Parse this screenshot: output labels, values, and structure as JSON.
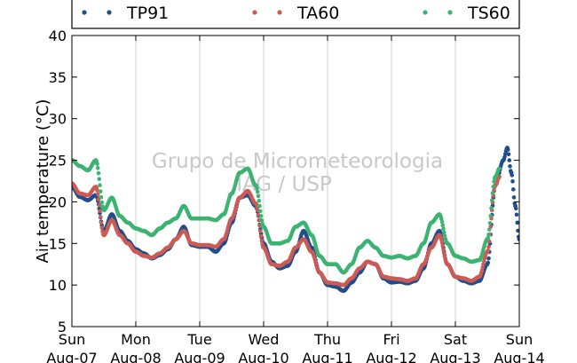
{
  "chart_data": {
    "type": "scatter",
    "ylabel": "Air temperature (°C)",
    "ylim": [
      5,
      40
    ],
    "yticks": [
      5,
      10,
      15,
      20,
      25,
      30,
      35,
      40
    ],
    "x_unit": "day",
    "xlim": [
      "2016-08-07",
      "2016-08-14"
    ],
    "xticks": [
      {
        "day": "Sun",
        "date": "Aug-07"
      },
      {
        "day": "Mon",
        "date": "Aug-08"
      },
      {
        "day": "Tue",
        "date": "Aug-09"
      },
      {
        "day": "Wed",
        "date": "Aug-10"
      },
      {
        "day": "Thu",
        "date": "Aug-11"
      },
      {
        "day": "Fri",
        "date": "Aug-12"
      },
      {
        "day": "Sat",
        "date": "Aug-13"
      },
      {
        "day": "Sun",
        "date": "Aug-14"
      }
    ],
    "grid": "vertical",
    "legend_position": "top",
    "watermark": [
      "Grupo de Micrometeorologia",
      "IAG / USP"
    ],
    "series": [
      {
        "name": "TP91",
        "color": "#1f4e8c",
        "points": [
          [
            "2016-08-07 00:00",
            21.8
          ],
          [
            "2016-08-07 03:00",
            20.6
          ],
          [
            "2016-08-07 06:00",
            20.2
          ],
          [
            "2016-08-07 09:00",
            20.8
          ],
          [
            "2016-08-07 12:00",
            16.5
          ],
          [
            "2016-08-07 15:00",
            18.5
          ],
          [
            "2016-08-07 18:00",
            16.5
          ],
          [
            "2016-08-07 21:00",
            15.3
          ],
          [
            "2016-08-08 00:00",
            14.3
          ],
          [
            "2016-08-08 03:00",
            13.8
          ],
          [
            "2016-08-08 06:00",
            13.2
          ],
          [
            "2016-08-08 09:00",
            13.6
          ],
          [
            "2016-08-08 12:00",
            14.3
          ],
          [
            "2016-08-08 15:00",
            15.5
          ],
          [
            "2016-08-08 18:00",
            17.0
          ],
          [
            "2016-08-08 21:00",
            14.8
          ],
          [
            "2016-08-09 00:00",
            14.6
          ],
          [
            "2016-08-09 03:00",
            14.6
          ],
          [
            "2016-08-09 06:00",
            14.0
          ],
          [
            "2016-08-09 09:00",
            15.0
          ],
          [
            "2016-08-09 12:00",
            17.5
          ],
          [
            "2016-08-09 15:00",
            20.5
          ],
          [
            "2016-08-09 18:00",
            20.8
          ],
          [
            "2016-08-09 21:00",
            19.5
          ],
          [
            "2016-08-10 00:00",
            15.0
          ],
          [
            "2016-08-10 03:00",
            12.8
          ],
          [
            "2016-08-10 06:00",
            12.0
          ],
          [
            "2016-08-10 09:00",
            12.3
          ],
          [
            "2016-08-10 12:00",
            14.0
          ],
          [
            "2016-08-10 15:00",
            16.5
          ],
          [
            "2016-08-10 18:00",
            14.5
          ],
          [
            "2016-08-10 21:00",
            11.5
          ],
          [
            "2016-08-11 00:00",
            10.0
          ],
          [
            "2016-08-11 03:00",
            9.8
          ],
          [
            "2016-08-11 06:00",
            9.3
          ],
          [
            "2016-08-11 09:00",
            10.3
          ],
          [
            "2016-08-11 12:00",
            11.5
          ],
          [
            "2016-08-11 15:00",
            12.8
          ],
          [
            "2016-08-11 18:00",
            12.5
          ],
          [
            "2016-08-11 21:00",
            10.8
          ],
          [
            "2016-08-12 00:00",
            10.3
          ],
          [
            "2016-08-12 03:00",
            10.4
          ],
          [
            "2016-08-12 06:00",
            10.2
          ],
          [
            "2016-08-12 09:00",
            10.5
          ],
          [
            "2016-08-12 12:00",
            12.0
          ],
          [
            "2016-08-12 15:00",
            15.0
          ],
          [
            "2016-08-12 18:00",
            16.5
          ],
          [
            "2016-08-12 21:00",
            12.5
          ],
          [
            "2016-08-13 00:00",
            11.0
          ],
          [
            "2016-08-13 03:00",
            10.5
          ],
          [
            "2016-08-13 06:00",
            10.2
          ],
          [
            "2016-08-13 09:00",
            10.5
          ],
          [
            "2016-08-13 12:00",
            12.5
          ],
          [
            "2016-08-13 15:00",
            22.0
          ],
          [
            "2016-08-13 18:00",
            25.0
          ],
          [
            "2016-08-13 19:30",
            26.5
          ],
          [
            "2016-08-13 21:00",
            23.5
          ],
          [
            "2016-08-13 22:30",
            19.5
          ],
          [
            "2016-08-14 00:00",
            15.5
          ]
        ]
      },
      {
        "name": "TA60",
        "color": "#cc5a55",
        "points": [
          [
            "2016-08-07 00:00",
            22.2
          ],
          [
            "2016-08-07 03:00",
            21.0
          ],
          [
            "2016-08-07 06:00",
            20.8
          ],
          [
            "2016-08-07 09:00",
            21.8
          ],
          [
            "2016-08-07 12:00",
            16.0
          ],
          [
            "2016-08-07 15:00",
            17.8
          ],
          [
            "2016-08-07 18:00",
            16.0
          ],
          [
            "2016-08-07 21:00",
            15.0
          ],
          [
            "2016-08-08 00:00",
            14.0
          ],
          [
            "2016-08-08 03:00",
            13.5
          ],
          [
            "2016-08-08 06:00",
            13.3
          ],
          [
            "2016-08-08 09:00",
            13.8
          ],
          [
            "2016-08-08 12:00",
            14.5
          ],
          [
            "2016-08-08 15:00",
            15.5
          ],
          [
            "2016-08-08 18:00",
            16.5
          ],
          [
            "2016-08-08 21:00",
            15.0
          ],
          [
            "2016-08-09 00:00",
            14.8
          ],
          [
            "2016-08-09 03:00",
            14.8
          ],
          [
            "2016-08-09 06:00",
            14.6
          ],
          [
            "2016-08-09 09:00",
            15.5
          ],
          [
            "2016-08-09 12:00",
            18.0
          ],
          [
            "2016-08-09 15:00",
            20.5
          ],
          [
            "2016-08-09 18:00",
            21.3
          ],
          [
            "2016-08-09 21:00",
            19.8
          ],
          [
            "2016-08-10 00:00",
            14.5
          ],
          [
            "2016-08-10 03:00",
            12.5
          ],
          [
            "2016-08-10 06:00",
            12.3
          ],
          [
            "2016-08-10 09:00",
            12.8
          ],
          [
            "2016-08-10 12:00",
            14.5
          ],
          [
            "2016-08-10 15:00",
            15.5
          ],
          [
            "2016-08-10 18:00",
            14.0
          ],
          [
            "2016-08-10 21:00",
            11.5
          ],
          [
            "2016-08-11 00:00",
            10.3
          ],
          [
            "2016-08-11 03:00",
            10.2
          ],
          [
            "2016-08-11 06:00",
            10.0
          ],
          [
            "2016-08-11 09:00",
            10.8
          ],
          [
            "2016-08-11 12:00",
            12.0
          ],
          [
            "2016-08-11 15:00",
            12.8
          ],
          [
            "2016-08-11 18:00",
            12.5
          ],
          [
            "2016-08-11 21:00",
            11.0
          ],
          [
            "2016-08-12 00:00",
            10.8
          ],
          [
            "2016-08-12 03:00",
            10.7
          ],
          [
            "2016-08-12 06:00",
            10.5
          ],
          [
            "2016-08-12 09:00",
            10.8
          ],
          [
            "2016-08-12 12:00",
            12.5
          ],
          [
            "2016-08-12 15:00",
            14.5
          ],
          [
            "2016-08-12 18:00",
            16.0
          ],
          [
            "2016-08-12 21:00",
            12.5
          ],
          [
            "2016-08-13 00:00",
            11.0
          ],
          [
            "2016-08-13 03:00",
            10.8
          ],
          [
            "2016-08-13 06:00",
            10.5
          ],
          [
            "2016-08-13 09:00",
            11.0
          ],
          [
            "2016-08-13 12:00",
            14.0
          ],
          [
            "2016-08-13 15:00",
            22.0
          ],
          [
            "2016-08-13 16:30",
            23.0
          ]
        ]
      },
      {
        "name": "TS60",
        "color": "#3cb371",
        "points": [
          [
            "2016-08-07 00:00",
            25.0
          ],
          [
            "2016-08-07 03:00",
            24.3
          ],
          [
            "2016-08-07 06:00",
            23.8
          ],
          [
            "2016-08-07 09:00",
            25.0
          ],
          [
            "2016-08-07 12:00",
            19.0
          ],
          [
            "2016-08-07 15:00",
            20.5
          ],
          [
            "2016-08-07 18:00",
            18.3
          ],
          [
            "2016-08-07 21:00",
            17.5
          ],
          [
            "2016-08-08 00:00",
            16.8
          ],
          [
            "2016-08-08 03:00",
            16.5
          ],
          [
            "2016-08-08 06:00",
            16.0
          ],
          [
            "2016-08-08 09:00",
            16.8
          ],
          [
            "2016-08-08 12:00",
            17.5
          ],
          [
            "2016-08-08 15:00",
            18.0
          ],
          [
            "2016-08-08 18:00",
            19.5
          ],
          [
            "2016-08-08 21:00",
            18.0
          ],
          [
            "2016-08-09 00:00",
            18.0
          ],
          [
            "2016-08-09 03:00",
            18.0
          ],
          [
            "2016-08-09 06:00",
            17.8
          ],
          [
            "2016-08-09 09:00",
            18.5
          ],
          [
            "2016-08-09 12:00",
            21.0
          ],
          [
            "2016-08-09 15:00",
            23.5
          ],
          [
            "2016-08-09 18:00",
            24.0
          ],
          [
            "2016-08-09 21:00",
            22.0
          ],
          [
            "2016-08-10 00:00",
            17.0
          ],
          [
            "2016-08-10 03:00",
            15.0
          ],
          [
            "2016-08-10 06:00",
            15.0
          ],
          [
            "2016-08-10 09:00",
            15.3
          ],
          [
            "2016-08-10 12:00",
            17.0
          ],
          [
            "2016-08-10 15:00",
            17.5
          ],
          [
            "2016-08-10 18:00",
            16.0
          ],
          [
            "2016-08-10 21:00",
            13.5
          ],
          [
            "2016-08-11 00:00",
            12.5
          ],
          [
            "2016-08-11 03:00",
            12.5
          ],
          [
            "2016-08-11 06:00",
            11.5
          ],
          [
            "2016-08-11 09:00",
            12.5
          ],
          [
            "2016-08-11 12:00",
            14.5
          ],
          [
            "2016-08-11 15:00",
            15.3
          ],
          [
            "2016-08-11 18:00",
            14.5
          ],
          [
            "2016-08-11 21:00",
            13.5
          ],
          [
            "2016-08-12 00:00",
            13.3
          ],
          [
            "2016-08-12 03:00",
            13.5
          ],
          [
            "2016-08-12 06:00",
            13.2
          ],
          [
            "2016-08-12 09:00",
            13.5
          ],
          [
            "2016-08-12 12:00",
            15.0
          ],
          [
            "2016-08-12 15:00",
            17.5
          ],
          [
            "2016-08-12 18:00",
            18.5
          ],
          [
            "2016-08-12 21:00",
            15.0
          ],
          [
            "2016-08-13 00:00",
            13.5
          ],
          [
            "2016-08-13 03:00",
            13.2
          ],
          [
            "2016-08-13 06:00",
            12.8
          ],
          [
            "2016-08-13 09:00",
            13.0
          ],
          [
            "2016-08-13 12:00",
            15.5
          ],
          [
            "2016-08-13 15:00",
            23.0
          ],
          [
            "2016-08-13 16:30",
            24.0
          ]
        ]
      }
    ]
  }
}
